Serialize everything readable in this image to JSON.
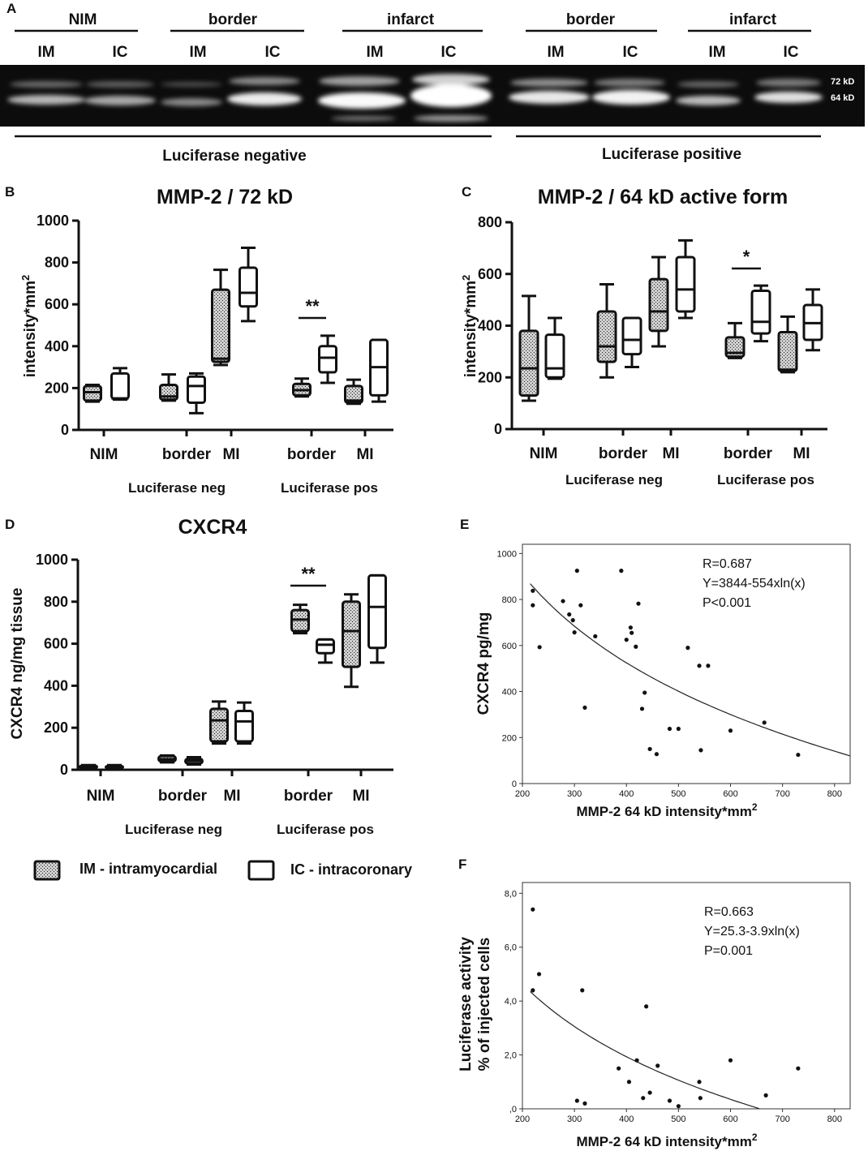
{
  "panel_letters": [
    "A",
    "B",
    "C",
    "D",
    "E",
    "F"
  ],
  "blot": {
    "groups": [
      "NIM",
      "border",
      "infarct",
      "border",
      "infarct"
    ],
    "lanes": [
      "IM",
      "IC",
      "IM",
      "IC",
      "IM",
      "IC",
      "IM",
      "IC",
      "IM",
      "IC"
    ],
    "bands": [
      "72 kD",
      "64 kD"
    ],
    "sections": [
      "Luciferase negative",
      "Luciferase positive"
    ]
  },
  "legend": {
    "im": "IM - intramyocardial",
    "ic": "IC - intracoronary"
  },
  "chart_data": [
    {
      "id": "B",
      "type": "box",
      "title": "MMP-2 / 72 kD",
      "ylabel": "intensity*mm",
      "ylabel_sup": "2",
      "ylim": [
        0,
        1000
      ],
      "yticks": [
        "0",
        "200",
        "400",
        "600",
        "800",
        "1000"
      ],
      "categories": [
        "NIM",
        "border",
        "MI",
        "border",
        "MI"
      ],
      "groups": [
        "Luciferase neg",
        "Luciferase pos"
      ],
      "significance": "**",
      "boxes": [
        {
          "cat": "NIM",
          "route": "IM",
          "min": 135,
          "q1": 140,
          "median": 180,
          "q3": 210,
          "max": 215
        },
        {
          "cat": "NIM",
          "route": "IC",
          "min": 145,
          "q1": 150,
          "median": 150,
          "q3": 270,
          "max": 295
        },
        {
          "cat": "border",
          "route": "IM",
          "min": 140,
          "q1": 145,
          "median": 160,
          "q3": 215,
          "max": 265
        },
        {
          "cat": "border",
          "route": "IC",
          "min": 80,
          "q1": 130,
          "median": 210,
          "q3": 255,
          "max": 270
        },
        {
          "cat": "MI",
          "route": "IM",
          "min": 310,
          "q1": 325,
          "median": 340,
          "q3": 670,
          "max": 765
        },
        {
          "cat": "MI",
          "route": "IC",
          "min": 520,
          "q1": 590,
          "median": 655,
          "q3": 775,
          "max": 870
        },
        {
          "cat": "border",
          "route": "IM",
          "min": 160,
          "q1": 165,
          "median": 190,
          "q3": 220,
          "max": 245
        },
        {
          "cat": "border",
          "route": "IC",
          "min": 225,
          "q1": 275,
          "median": 345,
          "q3": 400,
          "max": 450
        },
        {
          "cat": "MI",
          "route": "IM",
          "min": 125,
          "q1": 130,
          "median": 140,
          "q3": 210,
          "max": 240
        },
        {
          "cat": "MI",
          "route": "IC",
          "min": 135,
          "q1": 165,
          "median": 300,
          "q3": 430,
          "max": 430
        }
      ]
    },
    {
      "id": "C",
      "type": "box",
      "title": "MMP-2 / 64 kD active form",
      "ylabel": "intensity*mm",
      "ylabel_sup": "2",
      "ylim": [
        0,
        800
      ],
      "yticks": [
        "0",
        "200",
        "400",
        "600",
        "800"
      ],
      "categories": [
        "NIM",
        "border",
        "MI",
        "border",
        "MI"
      ],
      "groups": [
        "Luciferase neg",
        "Luciferase pos"
      ],
      "significance": "*",
      "boxes": [
        {
          "cat": "NIM",
          "route": "IM",
          "min": 110,
          "q1": 130,
          "median": 235,
          "q3": 380,
          "max": 515
        },
        {
          "cat": "NIM",
          "route": "IC",
          "min": 195,
          "q1": 200,
          "median": 235,
          "q3": 365,
          "max": 430
        },
        {
          "cat": "border",
          "route": "IM",
          "min": 200,
          "q1": 260,
          "median": 320,
          "q3": 455,
          "max": 560
        },
        {
          "cat": "border",
          "route": "IC",
          "min": 240,
          "q1": 290,
          "median": 345,
          "q3": 430,
          "max": 430
        },
        {
          "cat": "MI",
          "route": "IM",
          "min": 320,
          "q1": 380,
          "median": 455,
          "q3": 580,
          "max": 665
        },
        {
          "cat": "MI",
          "route": "IC",
          "min": 430,
          "q1": 455,
          "median": 540,
          "q3": 665,
          "max": 730
        },
        {
          "cat": "border",
          "route": "IM",
          "min": 275,
          "q1": 280,
          "median": 295,
          "q3": 355,
          "max": 410
        },
        {
          "cat": "border",
          "route": "IC",
          "min": 340,
          "q1": 370,
          "median": 415,
          "q3": 535,
          "max": 555
        },
        {
          "cat": "MI",
          "route": "IM",
          "min": 220,
          "q1": 225,
          "median": 230,
          "q3": 375,
          "max": 435
        },
        {
          "cat": "MI",
          "route": "IC",
          "min": 305,
          "q1": 345,
          "median": 410,
          "q3": 480,
          "max": 540
        }
      ]
    },
    {
      "id": "D",
      "type": "box",
      "title": "CXCR4",
      "ylabel": "CXCR4 ng/mg tissue",
      "ylim": [
        0,
        1000
      ],
      "yticks": [
        "0",
        "200",
        "400",
        "600",
        "800",
        "1000"
      ],
      "categories": [
        "NIM",
        "border",
        "MI",
        "border",
        "MI"
      ],
      "groups": [
        "Luciferase neg",
        "Luciferase pos"
      ],
      "significance": "**",
      "boxes": [
        {
          "cat": "NIM",
          "route": "IM",
          "min": 5,
          "q1": 8,
          "median": 13,
          "q3": 20,
          "max": 22
        },
        {
          "cat": "NIM",
          "route": "IC",
          "min": 5,
          "q1": 8,
          "median": 12,
          "q3": 18,
          "max": 22
        },
        {
          "cat": "border",
          "route": "IM",
          "min": 35,
          "q1": 40,
          "median": 50,
          "q3": 65,
          "max": 68
        },
        {
          "cat": "border",
          "route": "IC",
          "min": 25,
          "q1": 30,
          "median": 42,
          "q3": 52,
          "max": 60
        },
        {
          "cat": "MI",
          "route": "IM",
          "min": 125,
          "q1": 135,
          "median": 235,
          "q3": 290,
          "max": 325
        },
        {
          "cat": "MI",
          "route": "IC",
          "min": 125,
          "q1": 135,
          "median": 230,
          "q3": 280,
          "max": 320
        },
        {
          "cat": "border",
          "route": "IM",
          "min": 650,
          "q1": 660,
          "median": 715,
          "q3": 760,
          "max": 785
        },
        {
          "cat": "border",
          "route": "IC",
          "min": 510,
          "q1": 555,
          "median": 595,
          "q3": 620,
          "max": 620
        },
        {
          "cat": "MI",
          "route": "IM",
          "min": 395,
          "q1": 490,
          "median": 660,
          "q3": 800,
          "max": 835
        },
        {
          "cat": "MI",
          "route": "IC",
          "min": 510,
          "q1": 580,
          "median": 775,
          "q3": 925,
          "max": 925
        }
      ]
    },
    {
      "id": "E",
      "type": "scatter",
      "xlabel": "MMP-2 64 kD intensity*mm",
      "xlabel_sup": "2",
      "ylabel": "CXCR4 pg/mg",
      "xlim": [
        200,
        830
      ],
      "ylim": [
        0,
        1040
      ],
      "xticks": [
        "200",
        "300",
        "400",
        "500",
        "600",
        "700",
        "800"
      ],
      "yticks": [
        "0",
        "200",
        "400",
        "600",
        "800",
        "1000"
      ],
      "annotation": [
        "R=0.687",
        "Y=3844-554xln(x)",
        "P<0.001"
      ],
      "fit": {
        "a": 3844,
        "b": -554
      },
      "points": [
        [
          220,
          838
        ],
        [
          220,
          775
        ],
        [
          233,
          593
        ],
        [
          278,
          793
        ],
        [
          290,
          735
        ],
        [
          297,
          710
        ],
        [
          300,
          657
        ],
        [
          305,
          925
        ],
        [
          312,
          775
        ],
        [
          320,
          330
        ],
        [
          340,
          640
        ],
        [
          390,
          925
        ],
        [
          400,
          625
        ],
        [
          408,
          678
        ],
        [
          410,
          655
        ],
        [
          418,
          595
        ],
        [
          423,
          782
        ],
        [
          430,
          325
        ],
        [
          435,
          395
        ],
        [
          445,
          150
        ],
        [
          458,
          128
        ],
        [
          483,
          238
        ],
        [
          500,
          238
        ],
        [
          518,
          590
        ],
        [
          540,
          512
        ],
        [
          543,
          145
        ],
        [
          557,
          512
        ],
        [
          600,
          230
        ],
        [
          665,
          265
        ],
        [
          730,
          125
        ]
      ]
    },
    {
      "id": "F",
      "type": "scatter",
      "xlabel": "MMP-2 64 kD intensity*mm",
      "xlabel_sup": "2",
      "ylabel": [
        "Luciferase activity",
        "% of injected cells"
      ],
      "xlim": [
        200,
        830
      ],
      "ylim": [
        0,
        8.4
      ],
      "xticks": [
        "200",
        "300",
        "400",
        "500",
        "600",
        "700",
        "800"
      ],
      "yticks": [
        ",0",
        "2,0",
        "4,0",
        "6,0",
        "8,0"
      ],
      "annotation": [
        "R=0.663",
        "Y=25.3-3.9xln(x)",
        "P=0.001"
      ],
      "fit": {
        "a": 25.3,
        "b": -3.9
      },
      "points": [
        [
          220,
          7.4
        ],
        [
          220,
          4.4
        ],
        [
          232,
          5.0
        ],
        [
          305,
          0.3
        ],
        [
          315,
          4.4
        ],
        [
          320,
          0.2
        ],
        [
          385,
          1.5
        ],
        [
          405,
          1.0
        ],
        [
          420,
          1.8
        ],
        [
          432,
          0.4
        ],
        [
          438,
          3.8
        ],
        [
          445,
          0.6
        ],
        [
          460,
          1.6
        ],
        [
          483,
          0.3
        ],
        [
          500,
          0.1
        ],
        [
          540,
          1.0
        ],
        [
          542,
          0.4
        ],
        [
          600,
          1.8
        ],
        [
          668,
          0.5
        ],
        [
          730,
          1.5
        ]
      ]
    }
  ]
}
